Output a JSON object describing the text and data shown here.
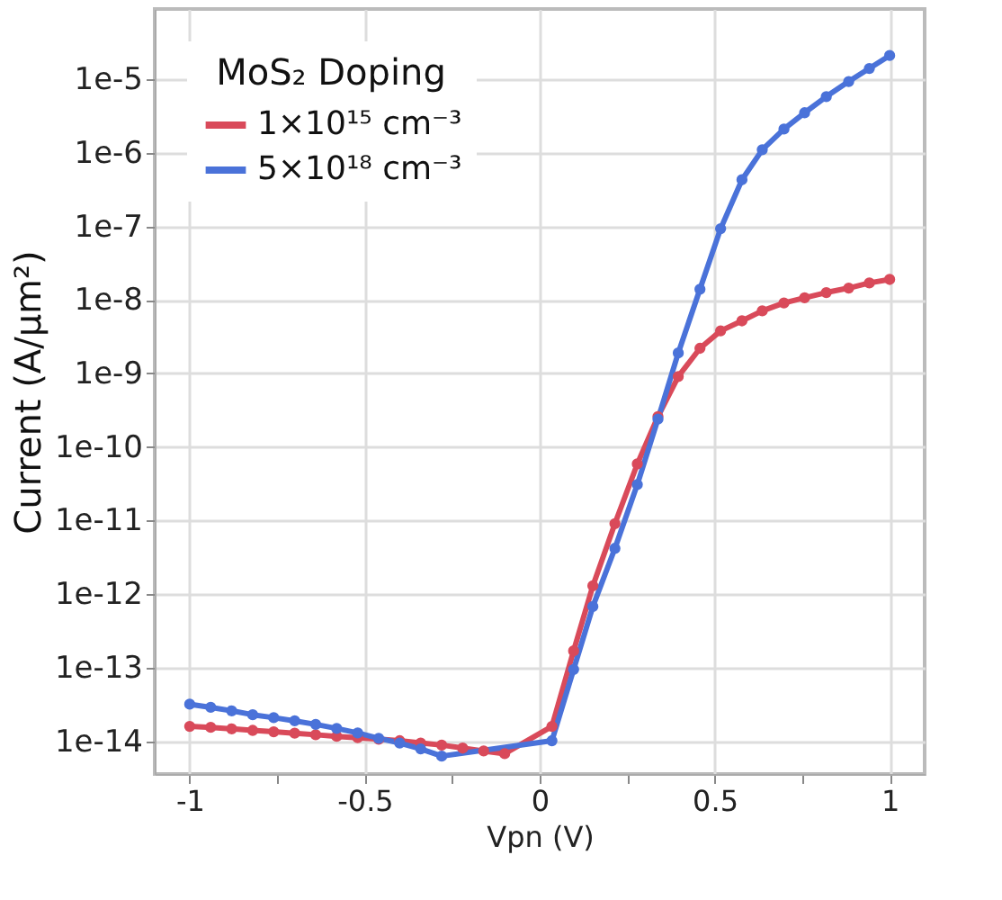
{
  "chart_data": {
    "type": "line",
    "xlabel": "Vpn (V)",
    "ylabel": "Current (A/μm²)",
    "legend_title": "MoS₂ Doping",
    "xlim": [
      -1.1,
      1.1
    ],
    "xticks": [
      -1,
      {
        "value": -0.75,
        "label": null
      },
      -0.5,
      {
        "value": -0.25,
        "label": null
      },
      0,
      {
        "value": 0.25,
        "label": null
      },
      0.5,
      {
        "value": 0.75,
        "label": null
      },
      1
    ],
    "ylim": [
      3.6e-15,
      9e-05
    ],
    "yticks": [
      {
        "value": 1e-14,
        "label": "1e-14"
      },
      {
        "value": 1e-13,
        "label": "1e-13"
      },
      {
        "value": 1e-12,
        "label": "1e-12"
      },
      {
        "value": 1e-11,
        "label": "1e-11"
      },
      {
        "value": 1e-10,
        "label": "1e-10"
      },
      {
        "value": 1e-09,
        "label": "1e-9"
      },
      {
        "value": 1e-08,
        "label": "1e-8"
      },
      {
        "value": 1e-07,
        "label": "1e-7"
      },
      {
        "value": 1e-06,
        "label": "1e-6"
      },
      {
        "value": 1e-05,
        "label": "1e-5"
      }
    ],
    "log": "y",
    "grid": true,
    "legend": "top left",
    "marker": "circle",
    "line_style": "solid",
    "series": [
      {
        "name": "1×10¹⁵ cm⁻³",
        "color": "#d94a5a",
        "x": [
          -1,
          -0.94,
          -0.88,
          -0.82,
          -0.76,
          -0.7,
          -0.64,
          -0.58,
          -0.52,
          -0.46,
          -0.4,
          -0.34,
          -0.28,
          -0.22,
          -0.16,
          -0.1,
          0.035,
          0.097,
          0.152,
          0.215,
          0.279,
          0.338,
          0.396,
          0.458,
          0.517,
          0.578,
          0.636,
          0.698,
          0.757,
          0.819,
          0.883,
          0.942,
          1.0
        ],
        "values": [
          1.6e-14,
          1.55e-14,
          1.48e-14,
          1.41e-14,
          1.35e-14,
          1.29e-14,
          1.23e-14,
          1.17e-14,
          1.12e-14,
          1.07e-14,
          1.02e-14,
          9.5e-15,
          8.9e-15,
          8.1e-15,
          7.4e-15,
          6.8e-15,
          1.6e-14,
          1.7e-13,
          1.3e-12,
          9.1e-12,
          5.9e-11,
          2.6e-10,
          9.1e-10,
          2.2e-09,
          3.8e-09,
          5.2e-09,
          7.1e-09,
          9.1e-09,
          1.07e-08,
          1.26e-08,
          1.45e-08,
          1.7e-08,
          1.9e-08
        ]
      },
      {
        "name": "5×10¹⁸ cm⁻³",
        "color": "#4a72d9",
        "x": [
          -1,
          -0.94,
          -0.88,
          -0.82,
          -0.76,
          -0.7,
          -0.64,
          -0.58,
          -0.52,
          -0.46,
          -0.4,
          -0.34,
          -0.28,
          0.035,
          0.097,
          0.152,
          0.215,
          0.279,
          0.338,
          0.396,
          0.458,
          0.517,
          0.578,
          0.636,
          0.698,
          0.757,
          0.819,
          0.883,
          0.942,
          1.0
        ],
        "values": [
          3.2e-14,
          2.9e-14,
          2.6e-14,
          2.3e-14,
          2.1e-14,
          1.9e-14,
          1.7e-14,
          1.5e-14,
          1.3e-14,
          1.1e-14,
          9.5e-15,
          7.9e-15,
          6.3e-15,
          1.02e-14,
          9.5e-14,
          6.8e-13,
          4.2e-12,
          3.1e-11,
          2.4e-10,
          1.9e-09,
          1.4e-08,
          9.3e-08,
          4.3e-07,
          1.1e-06,
          2.1e-06,
          3.5e-06,
          5.8e-06,
          9.3e-06,
          1.4e-05,
          2.1e-05
        ]
      }
    ]
  }
}
